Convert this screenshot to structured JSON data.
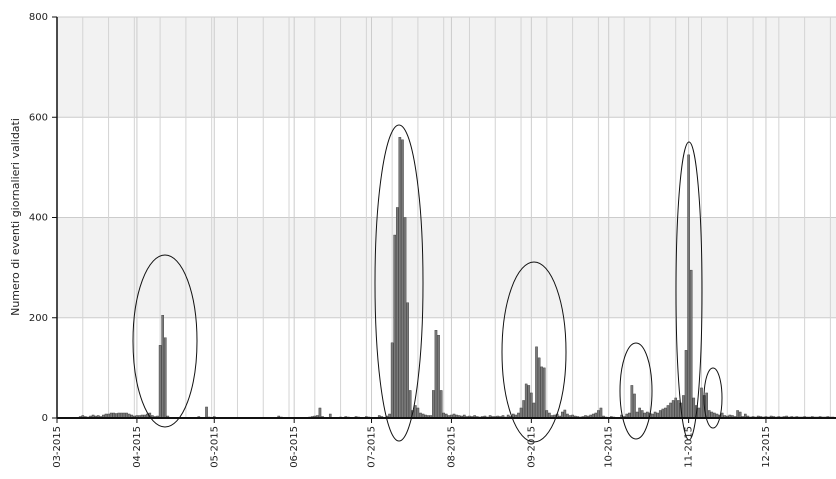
{
  "chart_data": {
    "type": "bar",
    "y_label": "Numero di eventi giornalieri validati",
    "categories": [
      "03-2015",
      null,
      null,
      null,
      null,
      null,
      null,
      null,
      null,
      null,
      null,
      null,
      null,
      null,
      null,
      null,
      null,
      null,
      null,
      null,
      null,
      null,
      null,
      null,
      null,
      null,
      null,
      null,
      null,
      null,
      null,
      "04-2015",
      null,
      null,
      null,
      null,
      null,
      null,
      null,
      null,
      null,
      null,
      null,
      null,
      null,
      null,
      null,
      null,
      null,
      null,
      null,
      null,
      null,
      null,
      null,
      null,
      null,
      null,
      null,
      null,
      null,
      "05-2015",
      null,
      null,
      null,
      null,
      null,
      null,
      null,
      null,
      null,
      null,
      null,
      null,
      null,
      null,
      null,
      null,
      null,
      null,
      null,
      null,
      null,
      null,
      null,
      null,
      null,
      null,
      null,
      null,
      null,
      null,
      "06-2015",
      null,
      null,
      null,
      null,
      null,
      null,
      null,
      null,
      null,
      null,
      null,
      null,
      null,
      null,
      null,
      null,
      null,
      null,
      null,
      null,
      null,
      null,
      null,
      null,
      null,
      null,
      null,
      null,
      null,
      "07-2015",
      null,
      null,
      null,
      null,
      null,
      null,
      null,
      null,
      null,
      null,
      null,
      null,
      null,
      null,
      null,
      null,
      null,
      null,
      null,
      null,
      null,
      null,
      null,
      null,
      null,
      null,
      null,
      null,
      null,
      null,
      "08-2015",
      null,
      null,
      null,
      null,
      null,
      null,
      null,
      null,
      null,
      null,
      null,
      null,
      null,
      null,
      null,
      null,
      null,
      null,
      null,
      null,
      null,
      null,
      null,
      null,
      null,
      null,
      null,
      null,
      null,
      null,
      "09-2015",
      null,
      null,
      null,
      null,
      null,
      null,
      null,
      null,
      null,
      null,
      null,
      null,
      null,
      null,
      null,
      null,
      null,
      null,
      null,
      null,
      null,
      null,
      null,
      null,
      null,
      null,
      null,
      null,
      null,
      "10-2015",
      null,
      null,
      null,
      null,
      null,
      null,
      null,
      null,
      null,
      null,
      null,
      null,
      null,
      null,
      null,
      null,
      null,
      null,
      null,
      null,
      null,
      null,
      null,
      null,
      null,
      null,
      null,
      null,
      null,
      null,
      "11-2015",
      null,
      null,
      null,
      null,
      null,
      null,
      null,
      null,
      null,
      null,
      null,
      null,
      null,
      null,
      null,
      null,
      null,
      null,
      null,
      null,
      null,
      null,
      null,
      null,
      null,
      null,
      null,
      null,
      null,
      "12-2015",
      null,
      null,
      null,
      null,
      null,
      null,
      null,
      null,
      null,
      null,
      null,
      null,
      null,
      null,
      null,
      null,
      null,
      null,
      null,
      null,
      null,
      null,
      null,
      null,
      null,
      null
    ],
    "values": [
      0,
      0,
      0,
      0,
      0,
      0,
      0,
      0,
      0,
      3,
      5,
      3,
      2,
      4,
      6,
      4,
      5,
      3,
      6,
      8,
      8,
      10,
      10,
      9,
      10,
      10,
      10,
      10,
      8,
      6,
      4,
      5,
      5,
      6,
      6,
      8,
      10,
      5,
      3,
      4,
      145,
      205,
      160,
      4,
      0,
      0,
      0,
      0,
      0,
      0,
      0,
      0,
      0,
      0,
      0,
      3,
      0,
      0,
      22,
      2,
      0,
      3,
      0,
      0,
      0,
      0,
      0,
      0,
      0,
      0,
      0,
      0,
      0,
      0,
      0,
      0,
      0,
      0,
      0,
      0,
      0,
      0,
      0,
      0,
      0,
      0,
      4,
      2,
      0,
      0,
      0,
      0,
      0,
      0,
      0,
      0,
      0,
      0,
      2,
      3,
      4,
      5,
      20,
      3,
      0,
      0,
      8,
      0,
      0,
      0,
      2,
      0,
      3,
      2,
      0,
      0,
      3,
      2,
      0,
      0,
      3,
      2,
      0,
      0,
      0,
      5,
      3,
      0,
      4,
      8,
      150,
      365,
      420,
      560,
      555,
      400,
      230,
      55,
      15,
      25,
      20,
      10,
      8,
      6,
      5,
      5,
      55,
      175,
      165,
      55,
      10,
      8,
      5,
      6,
      8,
      6,
      5,
      4,
      6,
      3,
      4,
      3,
      5,
      3,
      2,
      3,
      4,
      2,
      5,
      3,
      3,
      4,
      3,
      5,
      2,
      6,
      3,
      8,
      6,
      10,
      20,
      35,
      68,
      65,
      50,
      30,
      142,
      120,
      102,
      100,
      15,
      10,
      5,
      6,
      8,
      4,
      12,
      16,
      8,
      5,
      6,
      4,
      3,
      2,
      3,
      5,
      4,
      6,
      8,
      10,
      15,
      20,
      4,
      2,
      0,
      3,
      2,
      0,
      0,
      6,
      3,
      8,
      10,
      65,
      48,
      12,
      20,
      15,
      10,
      12,
      10,
      8,
      12,
      10,
      15,
      18,
      20,
      25,
      30,
      35,
      40,
      35,
      30,
      45,
      135,
      525,
      295,
      40,
      25,
      20,
      60,
      45,
      50,
      15,
      12,
      10,
      8,
      6,
      10,
      5,
      4,
      6,
      5,
      3,
      15,
      12,
      3,
      8,
      4,
      2,
      3,
      2,
      4,
      3,
      2,
      3,
      2,
      4,
      3,
      2,
      3,
      2,
      3,
      4,
      2,
      3,
      2,
      3,
      2,
      2,
      3,
      2,
      2,
      3,
      2,
      2,
      3,
      2,
      2,
      3,
      2,
      2
    ],
    "color": "#7a7a7a",
    "ylim": [
      0,
      800
    ],
    "yticks": [
      0,
      200,
      400,
      600,
      800
    ],
    "grid": true
  }
}
